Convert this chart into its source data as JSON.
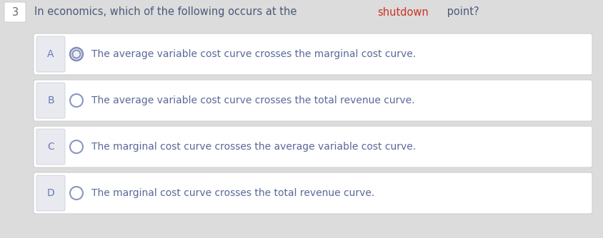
{
  "bg_color": "#dcdcdc",
  "question_number": "3",
  "question_text_parts": [
    {
      "text": "In economics, which of the following occurs at the ",
      "color": "#4a5a7a"
    },
    {
      "text": "shutdown",
      "color": "#cc3322"
    },
    {
      "text": " point?",
      "color": "#4a5a7a"
    }
  ],
  "question_number_color": "#666666",
  "options": [
    {
      "label": "A",
      "text": "The average variable cost curve crosses the marginal cost curve.",
      "has_inner_ring": true
    },
    {
      "label": "B",
      "text": "The average variable cost curve crosses the total revenue curve.",
      "has_inner_ring": false
    },
    {
      "label": "C",
      "text": "The marginal cost curve crosses the average variable cost curve.",
      "has_inner_ring": false
    },
    {
      "label": "D",
      "text": "The marginal cost curve crosses the total revenue curve.",
      "has_inner_ring": false
    }
  ],
  "option_box_facecolor": "#ffffff",
  "option_box_edgecolor": "#d0d0d0",
  "label_box_facecolor": "#e8eaf0",
  "label_box_edgecolor": "#c8cad8",
  "option_label_color": "#6878b0",
  "option_text_color": "#5a6898",
  "circle_edge_color": "#8898c0",
  "circle_edge_color_a": "#8090b8",
  "circle_inner_ring_color": "#9090b8",
  "circle_fill": "#ffffff"
}
